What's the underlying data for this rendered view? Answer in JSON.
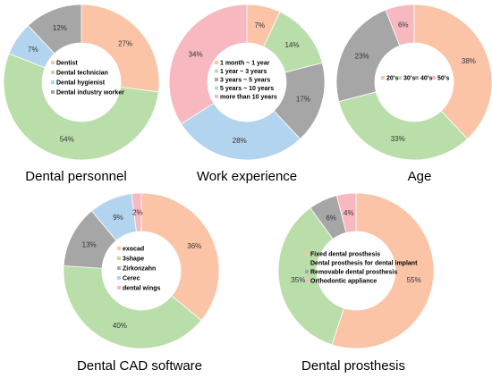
{
  "colors": {
    "peach": "#fbc4a6",
    "green": "#b9dea9",
    "blue": "#b3d4ee",
    "gray": "#a6a6a6",
    "pink": "#f8b8c0",
    "stroke": "#ffffff"
  },
  "chart_data": [
    {
      "type": "pie",
      "title": "Dental personnel",
      "categories": [
        "Dentist",
        "Dental technician",
        "Dental hygienist",
        "Dental industry worker"
      ],
      "values": [
        27,
        54,
        7,
        12
      ],
      "value_labels": [
        "27%",
        "54%",
        "7%",
        "12%"
      ],
      "colors": [
        "peach",
        "green",
        "blue",
        "gray"
      ]
    },
    {
      "type": "pie",
      "title": "Work experience",
      "categories": [
        "1 month ~ 1 year",
        "1 year ~ 3 years",
        "3 years ~  5 years",
        "5 years ~ 10 years",
        "more than 10 years"
      ],
      "values": [
        7,
        14,
        17,
        28,
        34
      ],
      "value_labels": [
        "7%",
        "14%",
        "17%",
        "28%",
        "34%"
      ],
      "colors": [
        "peach",
        "green",
        "gray",
        "blue",
        "pink"
      ],
      "legend_colors": [
        "peach",
        "green",
        "gray",
        "blue",
        "pink"
      ]
    },
    {
      "type": "pie",
      "title": "Age",
      "categories": [
        "20's",
        "30's",
        "40's",
        "50's"
      ],
      "values": [
        38,
        33,
        23,
        6
      ],
      "value_labels": [
        "38%",
        "33%",
        "23%",
        "6%"
      ],
      "colors": [
        "peach",
        "green",
        "gray",
        "pink"
      ]
    },
    {
      "type": "pie",
      "title": "Dental CAD software",
      "categories": [
        "exocad",
        "3shape",
        "Zirkonzahn",
        "Cerec",
        "dental wings"
      ],
      "values": [
        36,
        40,
        13,
        9,
        2
      ],
      "value_labels": [
        "36%",
        "40%",
        "13%",
        "9%",
        "2%"
      ],
      "colors": [
        "peach",
        "green",
        "gray",
        "blue",
        "pink"
      ]
    },
    {
      "type": "pie",
      "title": "Dental prosthesis",
      "categories": [
        "Fixed dental prosthesis",
        "Dental prosthesis for dental implant",
        "Removable dental prosthesis",
        "Orthodontic appliance"
      ],
      "values": [
        55,
        35,
        6,
        4
      ],
      "value_labels": [
        "55%",
        "35%",
        "6%",
        "4%"
      ],
      "colors": [
        "peach",
        "green",
        "gray",
        "pink"
      ]
    }
  ]
}
